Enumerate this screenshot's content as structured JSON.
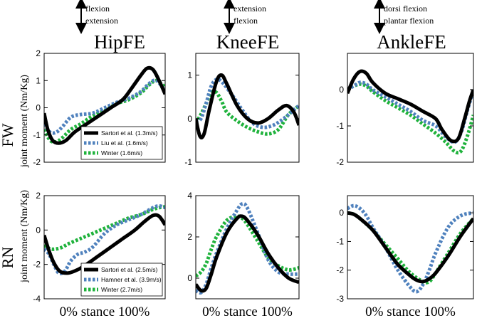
{
  "chart_data": {
    "type": "line",
    "columns": [
      {
        "title": "HipFE",
        "direction_top": "flexion",
        "direction_bottom": "extension"
      },
      {
        "title": "KneeFE",
        "direction_top": "extension",
        "direction_bottom": "flexion"
      },
      {
        "title": "AnkleFE",
        "direction_top": "dorsi flexion",
        "direction_bottom": "plantar flexion"
      }
    ],
    "rows": [
      {
        "label": "FW",
        "ylabel": "joint moment (Nm/Kg)"
      },
      {
        "label": "RN",
        "ylabel": "joint moment (Nm/Kg)"
      }
    ],
    "xlabel": "0% stance 100%",
    "colors": {
      "sartori": "#000000",
      "liu": "#4f81bd",
      "hamner": "#4f81bd",
      "winter": "#1fb23c"
    },
    "panels": [
      {
        "name": "FW-HipFE",
        "ylim": [
          -2,
          2
        ],
        "yticks": [
          -2,
          -1,
          0,
          1,
          2
        ],
        "legend": [
          "Sartori et al. (1.3m/s)",
          "Liu et al. (1.6m/s)",
          "Winter (1.6m/s)"
        ],
        "series": [
          {
            "key": "sartori",
            "x": [
              0,
              0.03,
              0.07,
              0.12,
              0.18,
              0.25,
              0.35,
              0.45,
              0.55,
              0.65,
              0.72,
              0.8,
              0.85,
              0.9,
              0.95,
              1
            ],
            "y": [
              -0.2,
              -0.8,
              -1.2,
              -1.3,
              -1.2,
              -0.9,
              -0.6,
              -0.3,
              0,
              0.3,
              0.7,
              1.2,
              1.45,
              1.4,
              1.0,
              0.5
            ]
          },
          {
            "key": "liu",
            "x": [
              0,
              0.05,
              0.1,
              0.15,
              0.22,
              0.3,
              0.4,
              0.5,
              0.6,
              0.7,
              0.8,
              0.87,
              0.93,
              1
            ],
            "y": [
              -0.6,
              -0.9,
              -0.9,
              -0.7,
              -0.35,
              -0.25,
              -0.2,
              0,
              0.2,
              0.35,
              0.6,
              0.9,
              1.0,
              0.6
            ]
          },
          {
            "key": "winter",
            "x": [
              0,
              0.05,
              0.1,
              0.15,
              0.22,
              0.3,
              0.4,
              0.5,
              0.6,
              0.7,
              0.8,
              0.87,
              0.93,
              1
            ],
            "y": [
              -0.8,
              -1.2,
              -1.25,
              -1.1,
              -0.8,
              -0.6,
              -0.3,
              -0.1,
              0.15,
              0.3,
              0.55,
              0.85,
              1.0,
              0.75
            ]
          }
        ]
      },
      {
        "name": "FW-KneeFE",
        "ylim": [
          -1,
          1.5
        ],
        "yticks": [
          -1,
          0,
          1
        ],
        "series": [
          {
            "key": "sartori",
            "x": [
              0,
              0.04,
              0.08,
              0.13,
              0.2,
              0.25,
              0.3,
              0.4,
              0.5,
              0.6,
              0.7,
              0.8,
              0.88,
              0.95,
              1
            ],
            "y": [
              0,
              -0.4,
              -0.35,
              0.2,
              0.85,
              1.0,
              0.8,
              0.3,
              0,
              -0.1,
              0,
              0.2,
              0.3,
              0.15,
              -0.15
            ]
          },
          {
            "key": "liu",
            "x": [
              0,
              0.05,
              0.1,
              0.15,
              0.2,
              0.25,
              0.35,
              0.45,
              0.55,
              0.65,
              0.75,
              0.85,
              0.95,
              1
            ],
            "y": [
              -0.05,
              0,
              0.35,
              0.75,
              0.9,
              0.85,
              0.55,
              0.2,
              -0.1,
              -0.2,
              -0.15,
              0,
              0.2,
              0.3
            ]
          },
          {
            "key": "winter",
            "x": [
              0,
              0.05,
              0.1,
              0.15,
              0.2,
              0.25,
              0.3,
              0.4,
              0.5,
              0.6,
              0.7,
              0.8,
              0.9,
              1
            ],
            "y": [
              -0.1,
              0.1,
              0.35,
              0.6,
              0.6,
              0.4,
              0.15,
              -0.05,
              -0.2,
              -0.3,
              -0.35,
              -0.25,
              0.1,
              0.3
            ]
          }
        ]
      },
      {
        "name": "FW-AnkleFE",
        "ylim": [
          -2,
          1
        ],
        "yticks": [
          -2,
          -1,
          0
        ],
        "series": [
          {
            "key": "sartori",
            "x": [
              0,
              0.05,
              0.1,
              0.15,
              0.2,
              0.3,
              0.4,
              0.5,
              0.6,
              0.7,
              0.75,
              0.82,
              0.88,
              0.93,
              0.97,
              1
            ],
            "y": [
              -0.1,
              0.3,
              0.5,
              0.45,
              0.2,
              -0.1,
              -0.25,
              -0.4,
              -0.6,
              -0.8,
              -1.1,
              -1.4,
              -1.35,
              -0.8,
              -0.3,
              0
            ]
          },
          {
            "key": "liu",
            "x": [
              0,
              0.05,
              0.1,
              0.15,
              0.2,
              0.3,
              0.4,
              0.5,
              0.6,
              0.7,
              0.78,
              0.85,
              0.9,
              0.95,
              1
            ],
            "y": [
              0,
              0.1,
              0.2,
              0.15,
              0,
              -0.2,
              -0.4,
              -0.6,
              -0.85,
              -1.0,
              -1.3,
              -1.45,
              -1.2,
              -0.6,
              0
            ]
          },
          {
            "key": "winter",
            "x": [
              0,
              0.05,
              0.1,
              0.15,
              0.2,
              0.3,
              0.4,
              0.5,
              0.6,
              0.7,
              0.78,
              0.85,
              0.9,
              0.95,
              1
            ],
            "y": [
              0,
              0.1,
              0.15,
              0.1,
              -0.05,
              -0.3,
              -0.5,
              -0.7,
              -0.95,
              -1.2,
              -1.45,
              -1.7,
              -1.7,
              -1.3,
              -0.7
            ]
          }
        ]
      },
      {
        "name": "RN-HipFE",
        "ylim": [
          -4,
          2
        ],
        "yticks": [
          -4,
          -2,
          0,
          2
        ],
        "legend": [
          "Sartori et al. (2.5m/s)",
          "Hamner et al. (3.9m/s)",
          "Winter (2.7m/s)"
        ],
        "series": [
          {
            "key": "sartori",
            "x": [
              0,
              0.04,
              0.08,
              0.13,
              0.2,
              0.28,
              0.35,
              0.45,
              0.55,
              0.65,
              0.75,
              0.83,
              0.9,
              0.95,
              1
            ],
            "y": [
              -0.3,
              -1.2,
              -1.9,
              -2.4,
              -2.5,
              -2.3,
              -2.0,
              -1.5,
              -1.0,
              -0.5,
              0,
              0.5,
              0.85,
              0.8,
              0.3
            ]
          },
          {
            "key": "hamner",
            "x": [
              0,
              0.04,
              0.08,
              0.12,
              0.17,
              0.22,
              0.28,
              0.33,
              0.4,
              0.5,
              0.6,
              0.7,
              0.8,
              0.9,
              0.95,
              1
            ],
            "y": [
              -1.1,
              -1.4,
              -2.0,
              -2.5,
              -2.4,
              -1.8,
              -1.4,
              -1.3,
              -1.0,
              -0.2,
              0.3,
              0.6,
              0.9,
              1.3,
              1.4,
              1.3
            ]
          },
          {
            "key": "winter",
            "x": [
              0,
              0.05,
              0.1,
              0.15,
              0.2,
              0.3,
              0.4,
              0.5,
              0.6,
              0.7,
              0.8,
              0.9,
              0.95,
              1
            ],
            "y": [
              -0.9,
              -1.1,
              -1.1,
              -1.0,
              -0.8,
              -0.5,
              -0.2,
              0.1,
              0.4,
              0.7,
              0.9,
              1.2,
              1.3,
              1.35
            ]
          }
        ]
      },
      {
        "name": "RN-KneeFE",
        "ylim": [
          -1,
          4
        ],
        "yticks": [
          0,
          2,
          4
        ],
        "series": [
          {
            "key": "sartori",
            "x": [
              0,
              0.05,
              0.1,
              0.15,
              0.2,
              0.3,
              0.4,
              0.45,
              0.5,
              0.6,
              0.7,
              0.8,
              0.9,
              1
            ],
            "y": [
              -0.3,
              -0.6,
              -0.5,
              0.2,
              1.0,
              2.2,
              2.9,
              3.0,
              2.8,
              2.1,
              1.2,
              0.5,
              0,
              -0.2
            ]
          },
          {
            "key": "hamner",
            "x": [
              0,
              0.05,
              0.1,
              0.15,
              0.2,
              0.3,
              0.4,
              0.45,
              0.5,
              0.6,
              0.7,
              0.8,
              0.9,
              1
            ],
            "y": [
              -0.6,
              -0.7,
              -0.3,
              0.5,
              1.2,
              2.4,
              3.3,
              3.6,
              3.4,
              2.2,
              0.9,
              0.3,
              0.2,
              0.2
            ]
          },
          {
            "key": "winter",
            "x": [
              0,
              0.05,
              0.1,
              0.15,
              0.2,
              0.3,
              0.4,
              0.45,
              0.5,
              0.6,
              0.7,
              0.8,
              0.9,
              1
            ],
            "y": [
              0.1,
              0.3,
              0.7,
              1.4,
              2.0,
              2.8,
              3.0,
              2.9,
              2.6,
              1.8,
              1.0,
              0.6,
              0.4,
              0.5
            ]
          }
        ]
      },
      {
        "name": "RN-AnkleFE",
        "ylim": [
          -3,
          0.6
        ],
        "yticks": [
          -3,
          -2,
          -1,
          0
        ],
        "series": [
          {
            "key": "sartori",
            "x": [
              0,
              0.05,
              0.1,
              0.2,
              0.3,
              0.4,
              0.5,
              0.55,
              0.6,
              0.65,
              0.7,
              0.8,
              0.9,
              1
            ],
            "y": [
              0,
              -0.05,
              -0.2,
              -0.6,
              -1.2,
              -1.8,
              -2.2,
              -2.35,
              -2.4,
              -2.3,
              -2.1,
              -1.5,
              -0.8,
              -0.2
            ]
          },
          {
            "key": "hamner",
            "x": [
              0,
              0.05,
              0.1,
              0.15,
              0.2,
              0.3,
              0.4,
              0.5,
              0.55,
              0.6,
              0.65,
              0.7,
              0.8,
              0.9,
              1
            ],
            "y": [
              0.15,
              0.25,
              0.15,
              -0.1,
              -0.5,
              -1.2,
              -2.0,
              -2.6,
              -2.75,
              -2.5,
              -2.0,
              -1.4,
              -0.5,
              -0.1,
              0
            ]
          },
          {
            "key": "winter",
            "x": [
              0,
              0.05,
              0.1,
              0.2,
              0.3,
              0.4,
              0.5,
              0.6,
              0.65,
              0.7,
              0.8,
              0.9,
              1
            ],
            "y": [
              0,
              -0.05,
              -0.2,
              -0.6,
              -1.1,
              -1.6,
              -2.1,
              -2.4,
              -2.4,
              -2.1,
              -1.4,
              -0.7,
              -0.2
            ]
          }
        ]
      }
    ]
  }
}
